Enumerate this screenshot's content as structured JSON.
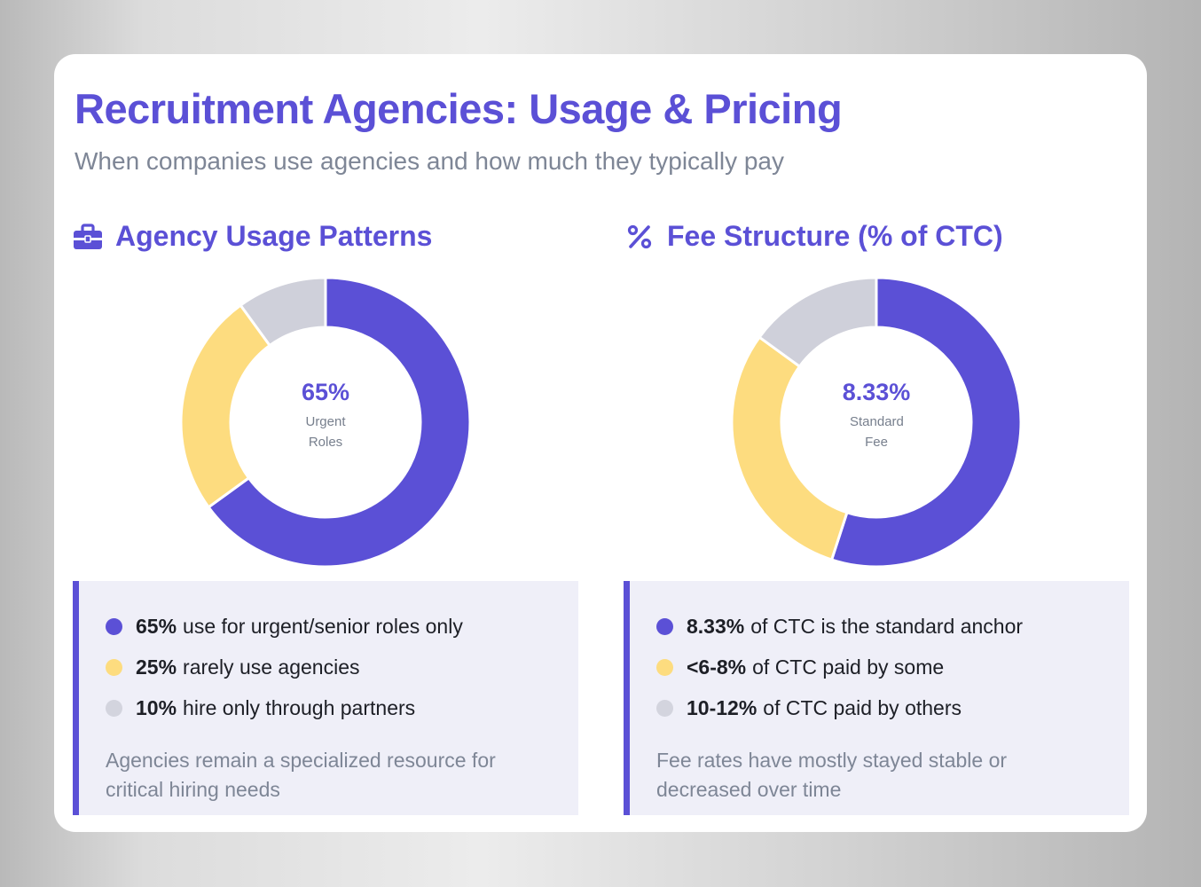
{
  "header": {
    "title": "Recruitment Agencies: Usage & Pricing",
    "subtitle": "When companies use agencies and how much they typically pay"
  },
  "colors": {
    "accent": "#5b50d6",
    "yellow": "#fddc7f",
    "gray": "#cfd0da"
  },
  "panels": [
    {
      "heading": "Agency Usage Patterns",
      "icon": "briefcase-icon",
      "center_value": "65%",
      "center_label": "Urgent Roles",
      "legend": [
        {
          "strong": "65%",
          "text": "use for urgent/senior roles only"
        },
        {
          "strong": "25%",
          "text": "rarely use agencies"
        },
        {
          "strong": "10%",
          "text": "hire only through partners"
        }
      ],
      "note": "Agencies remain a specialized resource for critical hiring needs"
    },
    {
      "heading": "Fee Structure (% of CTC)",
      "icon": "percent-icon",
      "center_value": "8.33%",
      "center_label": "Standard Fee",
      "legend": [
        {
          "strong": "8.33%",
          "text": "of CTC is the standard anchor"
        },
        {
          "strong": "<6-8%",
          "text": "of CTC paid by some"
        },
        {
          "strong": "10-12%",
          "text": "of CTC paid by others"
        }
      ],
      "note": "Fee rates have mostly stayed stable or decreased over time"
    }
  ],
  "chart_data": [
    {
      "type": "pie",
      "title": "Agency Usage Patterns",
      "categories": [
        "Urgent/senior roles only",
        "Rarely use agencies",
        "Hire only through partners"
      ],
      "values": [
        65,
        25,
        10
      ],
      "colors": [
        "#5b50d6",
        "#fddc7f",
        "#cfd0da"
      ],
      "center_label": "65% Urgent Roles"
    },
    {
      "type": "pie",
      "title": "Fee Structure (% of CTC)",
      "categories": [
        "8.33% standard anchor",
        "<6-8% paid by some",
        "10-12% paid by others"
      ],
      "values": [
        55,
        30,
        15
      ],
      "colors": [
        "#5b50d6",
        "#fddc7f",
        "#cfd0da"
      ],
      "center_label": "8.33% Standard Fee"
    }
  ]
}
